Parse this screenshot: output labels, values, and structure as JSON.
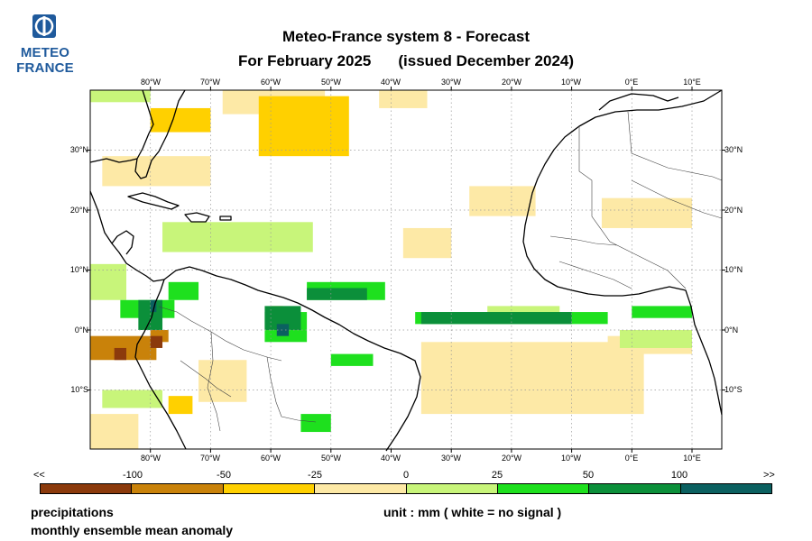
{
  "logo": {
    "line1": "METEO",
    "line2": "FRANCE",
    "brand_color": "#1f5a9c"
  },
  "title": {
    "line1": "Meteo-France system 8  -  Forecast",
    "line2a": "For February 2025",
    "line2b": "(issued December 2024)"
  },
  "map": {
    "lon_labels": [
      "80°W",
      "70°W",
      "60°W",
      "50°W",
      "40°W",
      "30°W",
      "20°W",
      "10°W",
      "0°E",
      "10°E"
    ],
    "lat_labels": [
      "30°N",
      "20°N",
      "10°N",
      "0°N",
      "10°S"
    ],
    "colors": {
      "sig_m100": "#8b3a0c",
      "sig_m50": "#c9820a",
      "sig_m25": "#ffd000",
      "sig_m0": "#fde9a6",
      "sig_p0": "#c8f57a",
      "sig_p25": "#1ee01e",
      "sig_p50": "#0b8f3a",
      "sig_p100": "#0b6060",
      "coast": "#000000",
      "grid": "#999999"
    }
  },
  "colorbar": {
    "left_arrow": "<<",
    "right_arrow": ">>",
    "tick_labels": [
      "-100",
      "-50",
      "-25",
      "0",
      "25",
      "50",
      "100"
    ],
    "colors": [
      "#8b3a0c",
      "#c9820a",
      "#ffd000",
      "#fde9a6",
      "#c8f57a",
      "#1ee01e",
      "#0b8f3a",
      "#0b6060"
    ]
  },
  "footer": {
    "line1": "precipitations",
    "line2": "monthly ensemble mean anomaly",
    "unit": "unit : mm  ( white = no signal )"
  }
}
